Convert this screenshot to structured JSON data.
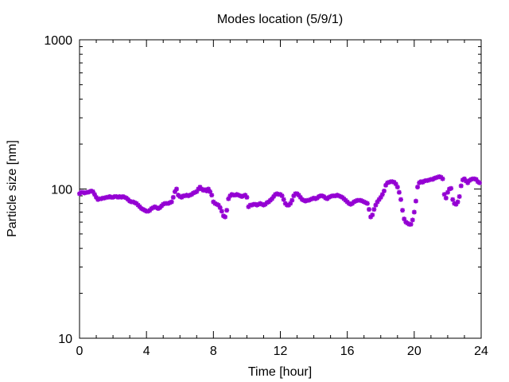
{
  "chart_data": {
    "type": "scatter",
    "title": "Modes location (5/9/1)",
    "xlabel": "Time [hour]",
    "ylabel": "Particle size [nm]",
    "xlim": [
      0,
      24
    ],
    "ylim": [
      10,
      1000
    ],
    "yscale": "log",
    "x_ticks": [
      0,
      4,
      8,
      12,
      16,
      20,
      24
    ],
    "x_tick_labels": [
      "0",
      "4",
      "8",
      "12",
      "16",
      "20",
      "24"
    ],
    "y_ticks": [
      10,
      100,
      1000
    ],
    "y_tick_labels": [
      "10",
      "100",
      "1000"
    ],
    "grid": false,
    "legend": "none",
    "marker_color": "#9400d3",
    "x": [
      0.0,
      0.1,
      0.2,
      0.3,
      0.4,
      0.5,
      0.6,
      0.7,
      0.8,
      0.9,
      1.0,
      1.1,
      1.2,
      1.3,
      1.4,
      1.5,
      1.6,
      1.7,
      1.8,
      1.9,
      2.0,
      2.1,
      2.2,
      2.3,
      2.4,
      2.5,
      2.6,
      2.7,
      2.8,
      2.9,
      3.0,
      3.1,
      3.2,
      3.3,
      3.4,
      3.5,
      3.6,
      3.7,
      3.8,
      3.9,
      4.0,
      4.1,
      4.2,
      4.3,
      4.4,
      4.5,
      4.6,
      4.7,
      4.8,
      4.9,
      5.0,
      5.1,
      5.2,
      5.3,
      5.4,
      5.5,
      5.6,
      5.7,
      5.8,
      5.9,
      6.0,
      6.1,
      6.2,
      6.3,
      6.4,
      6.5,
      6.6,
      6.7,
      6.8,
      6.9,
      7.0,
      7.1,
      7.2,
      7.3,
      7.4,
      7.5,
      7.6,
      7.7,
      7.8,
      7.9,
      8.0,
      8.1,
      8.2,
      8.3,
      8.4,
      8.5,
      8.6,
      8.7,
      8.8,
      8.9,
      9.0,
      9.1,
      9.2,
      9.3,
      9.4,
      9.5,
      9.6,
      9.7,
      9.8,
      9.9,
      10.0,
      10.1,
      10.2,
      10.3,
      10.4,
      10.5,
      10.6,
      10.7,
      10.8,
      10.9,
      11.0,
      11.1,
      11.2,
      11.3,
      11.4,
      11.5,
      11.6,
      11.7,
      11.8,
      11.9,
      12.0,
      12.1,
      12.2,
      12.3,
      12.4,
      12.5,
      12.6,
      12.7,
      12.8,
      12.9,
      13.0,
      13.1,
      13.2,
      13.3,
      13.4,
      13.5,
      13.6,
      13.7,
      13.8,
      13.9,
      14.0,
      14.1,
      14.2,
      14.3,
      14.4,
      14.5,
      14.6,
      14.7,
      14.8,
      14.9,
      15.0,
      15.1,
      15.2,
      15.3,
      15.4,
      15.5,
      15.6,
      15.7,
      15.8,
      15.9,
      16.0,
      16.1,
      16.2,
      16.3,
      16.4,
      16.5,
      16.6,
      16.7,
      16.8,
      16.9,
      17.0,
      17.1,
      17.2,
      17.3,
      17.4,
      17.5,
      17.6,
      17.7,
      17.8,
      17.9,
      18.0,
      18.1,
      18.2,
      18.3,
      18.4,
      18.5,
      18.6,
      18.7,
      18.8,
      18.9,
      19.0,
      19.1,
      19.2,
      19.3,
      19.4,
      19.5,
      19.6,
      19.7,
      19.8,
      19.9,
      20.0,
      20.1,
      20.2,
      20.3,
      20.4,
      20.5,
      20.6,
      20.7,
      20.8,
      20.9,
      21.0,
      21.1,
      21.2,
      21.3,
      21.4,
      21.5,
      21.6,
      21.7,
      21.8,
      21.9,
      22.0,
      22.1,
      22.2,
      22.3,
      22.4,
      22.5,
      22.6,
      22.7,
      22.8,
      22.9,
      23.0,
      23.1,
      23.2,
      23.3,
      23.4,
      23.5,
      23.6,
      23.7,
      23.8,
      23.9
    ],
    "y": [
      93,
      95,
      95,
      94,
      95,
      95,
      96,
      97,
      96,
      92,
      88,
      85,
      86,
      86,
      87,
      87,
      88,
      88,
      89,
      88,
      88,
      89,
      89,
      88,
      89,
      88,
      89,
      88,
      87,
      85,
      83,
      82,
      82,
      81,
      80,
      78,
      76,
      74,
      73,
      72,
      71,
      71,
      72,
      74,
      75,
      76,
      75,
      74,
      75,
      77,
      79,
      80,
      80,
      80,
      81,
      82,
      88,
      96,
      100,
      91,
      89,
      88,
      90,
      90,
      91,
      90,
      91,
      92,
      94,
      95,
      96,
      100,
      103,
      100,
      98,
      99,
      97,
      100,
      96,
      91,
      82,
      80,
      79,
      78,
      75,
      71,
      66,
      65,
      72,
      86,
      90,
      92,
      91,
      91,
      92,
      91,
      90,
      89,
      90,
      91,
      88,
      76,
      78,
      78,
      79,
      79,
      78,
      79,
      80,
      79,
      78,
      79,
      81,
      82,
      84,
      86,
      89,
      92,
      93,
      92,
      92,
      90,
      85,
      80,
      78,
      78,
      80,
      84,
      90,
      93,
      93,
      91,
      88,
      85,
      84,
      83,
      84,
      84,
      85,
      86,
      87,
      86,
      87,
      89,
      90,
      90,
      89,
      87,
      86,
      88,
      89,
      90,
      90,
      90,
      91,
      90,
      89,
      88,
      86,
      84,
      82,
      80,
      79,
      80,
      82,
      83,
      84,
      84,
      84,
      83,
      82,
      81,
      80,
      73,
      65,
      67,
      73,
      78,
      82,
      85,
      88,
      92,
      97,
      106,
      110,
      111,
      112,
      112,
      111,
      108,
      103,
      95,
      85,
      72,
      63,
      60,
      59,
      58,
      58,
      62,
      70,
      83,
      103,
      110,
      112,
      111,
      113,
      114,
      114,
      115,
      116,
      116,
      118,
      119,
      120,
      121,
      120,
      117,
      92,
      87,
      95,
      100,
      101,
      85,
      80,
      79,
      82,
      89,
      105,
      115,
      117,
      113,
      110,
      114,
      116,
      117,
      117,
      116,
      112,
      110
    ]
  }
}
